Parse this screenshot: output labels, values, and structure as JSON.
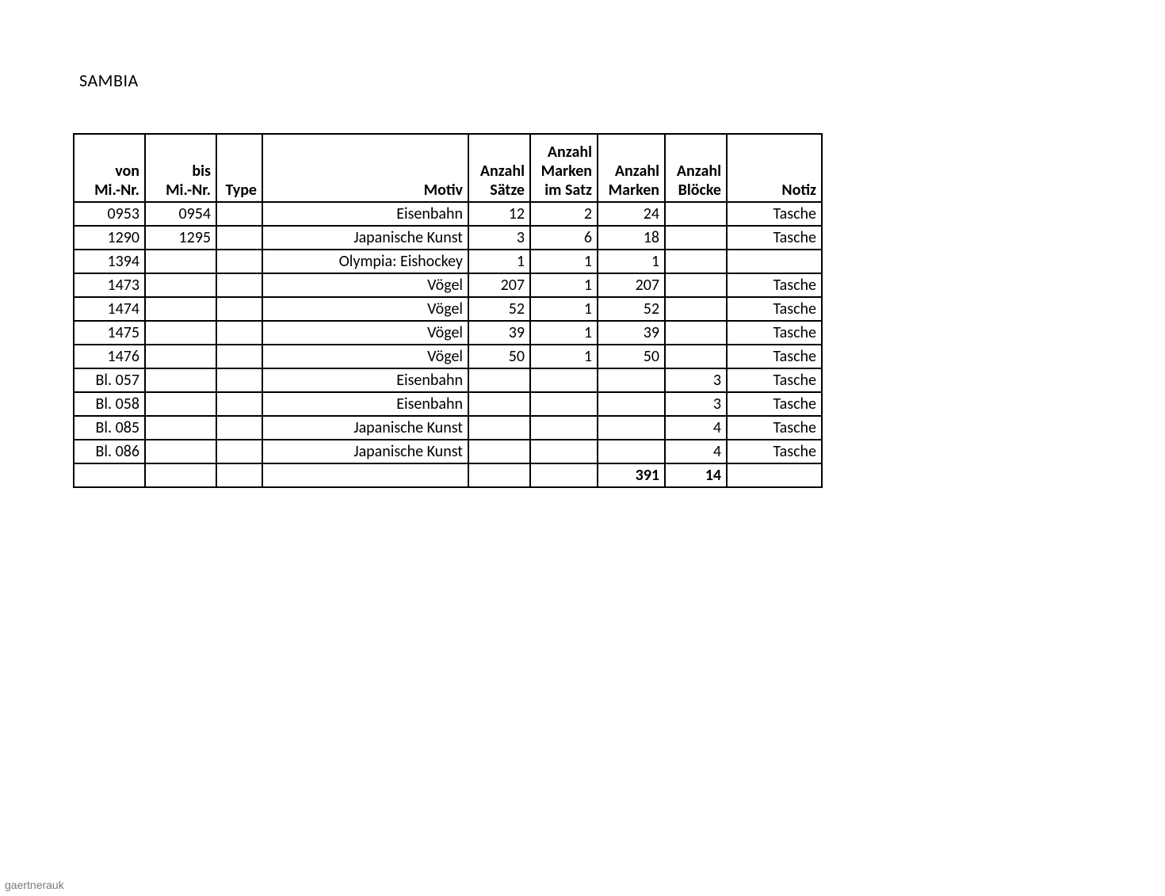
{
  "title": "SAMBIA",
  "watermark": "gaertnerauk",
  "table": {
    "columns": {
      "von": "von Mi.-Nr.",
      "bis": "bis Mi.-Nr.",
      "type": "Type",
      "motiv": "Motiv",
      "saetze": "Anzahl Sätze",
      "mis": "Anzahl Marken im Satz",
      "marken": "Anzahl Marken",
      "bloecke": "Anzahl Blöcke",
      "notiz": "Notiz"
    },
    "rows": [
      {
        "von": "0953",
        "bis": "0954",
        "type": "",
        "motiv": "Eisenbahn",
        "saetze": "12",
        "mis": "2",
        "marken": "24",
        "bloecke": "",
        "notiz": "Tasche"
      },
      {
        "von": "1290",
        "bis": "1295",
        "type": "",
        "motiv": "Japanische Kunst",
        "saetze": "3",
        "mis": "6",
        "marken": "18",
        "bloecke": "",
        "notiz": "Tasche"
      },
      {
        "von": "1394",
        "bis": "",
        "type": "",
        "motiv": "Olympia: Eishockey",
        "saetze": "1",
        "mis": "1",
        "marken": "1",
        "bloecke": "",
        "notiz": ""
      },
      {
        "von": "1473",
        "bis": "",
        "type": "",
        "motiv": "Vögel",
        "saetze": "207",
        "mis": "1",
        "marken": "207",
        "bloecke": "",
        "notiz": "Tasche"
      },
      {
        "von": "1474",
        "bis": "",
        "type": "",
        "motiv": "Vögel",
        "saetze": "52",
        "mis": "1",
        "marken": "52",
        "bloecke": "",
        "notiz": "Tasche"
      },
      {
        "von": "1475",
        "bis": "",
        "type": "",
        "motiv": "Vögel",
        "saetze": "39",
        "mis": "1",
        "marken": "39",
        "bloecke": "",
        "notiz": "Tasche"
      },
      {
        "von": "1476",
        "bis": "",
        "type": "",
        "motiv": "Vögel",
        "saetze": "50",
        "mis": "1",
        "marken": "50",
        "bloecke": "",
        "notiz": "Tasche"
      },
      {
        "von": "Bl. 057",
        "bis": "",
        "type": "",
        "motiv": "Eisenbahn",
        "saetze": "",
        "mis": "",
        "marken": "",
        "bloecke": "3",
        "notiz": "Tasche"
      },
      {
        "von": "Bl. 058",
        "bis": "",
        "type": "",
        "motiv": "Eisenbahn",
        "saetze": "",
        "mis": "",
        "marken": "",
        "bloecke": "3",
        "notiz": "Tasche"
      },
      {
        "von": "Bl. 085",
        "bis": "",
        "type": "",
        "motiv": "Japanische Kunst",
        "saetze": "",
        "mis": "",
        "marken": "",
        "bloecke": "4",
        "notiz": "Tasche"
      },
      {
        "von": "Bl. 086",
        "bis": "",
        "type": "",
        "motiv": "Japanische Kunst",
        "saetze": "",
        "mis": "",
        "marken": "",
        "bloecke": "4",
        "notiz": "Tasche"
      }
    ],
    "totals": {
      "marken": "391",
      "bloecke": "14"
    }
  }
}
